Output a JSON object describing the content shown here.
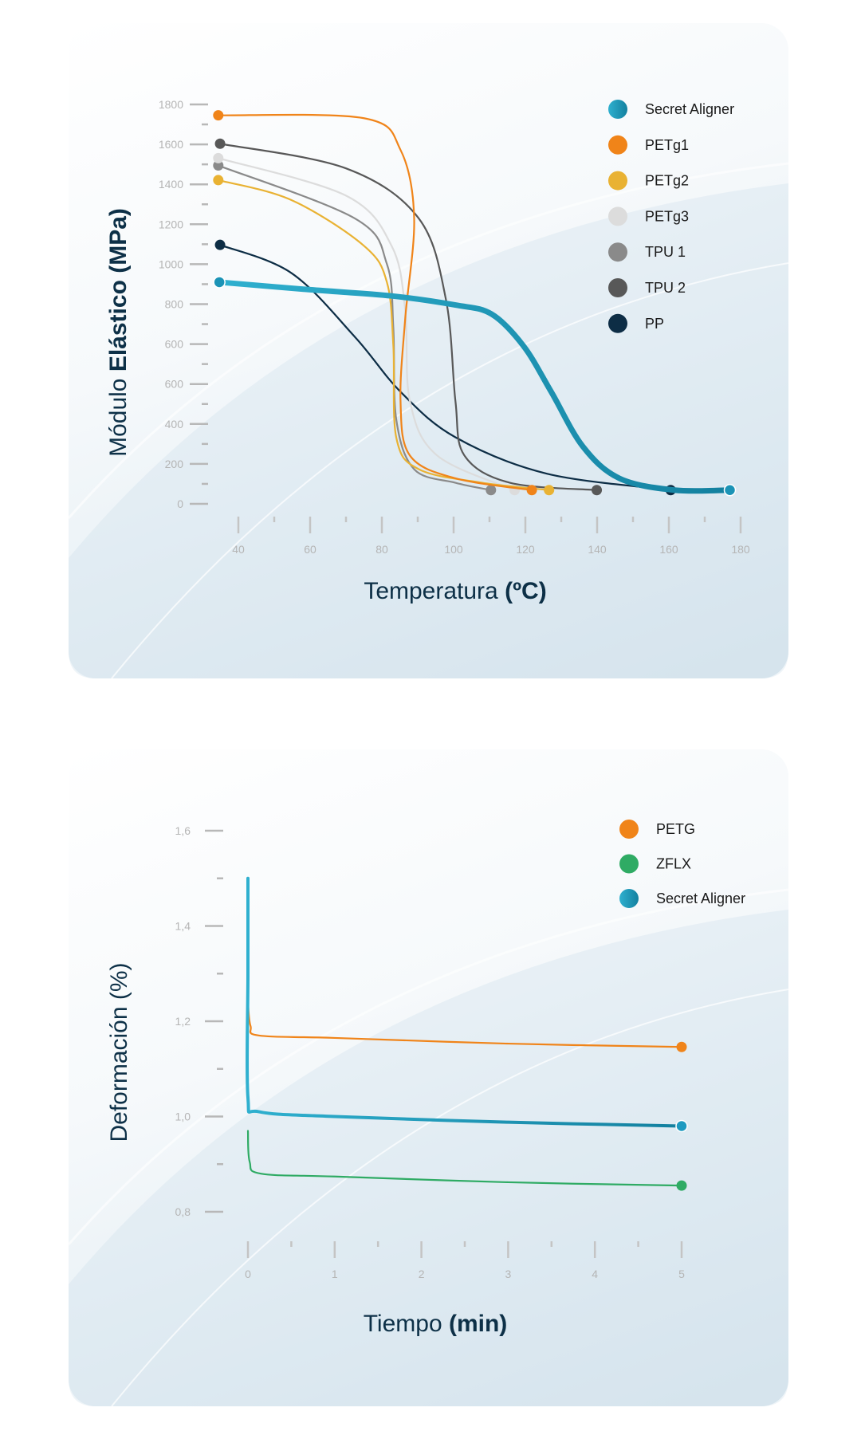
{
  "chart_data": [
    {
      "type": "line",
      "title": "",
      "xlabel": {
        "light": "Temperatura",
        "bold": "(ºC)"
      },
      "ylabel": {
        "light": "Módulo",
        "bold": "Elástico (MPa)"
      },
      "xlim": [
        40,
        180
      ],
      "ylim": [
        0,
        1800
      ],
      "x_ticks": [
        "40",
        "60",
        "80",
        "100",
        "120",
        "140",
        "160",
        "180"
      ],
      "y_ticks": [
        "1800",
        "1600",
        "1400",
        "1200",
        "1000",
        "800",
        "600",
        "600",
        "400",
        "200",
        "0"
      ],
      "legend_position": "top-right",
      "series": [
        {
          "name": "Secret Aligner",
          "color": "#1b93b6",
          "width": "thick",
          "points": [
            [
              34.7,
              999
            ],
            [
              60,
              965
            ],
            [
              82.7,
              937
            ],
            [
              100.5,
              896
            ],
            [
              110.6,
              855
            ],
            [
              119.5,
              711
            ],
            [
              127.2,
              505
            ],
            [
              136,
              259
            ],
            [
              146.2,
              115
            ],
            [
              161.5,
              62
            ],
            [
              177,
              62
            ]
          ]
        },
        {
          "name": "PETg1",
          "color": "#f08419",
          "points": [
            [
              34.4,
              1751
            ],
            [
              75,
              1738
            ],
            [
              85.2,
              1595
            ],
            [
              89,
              1286
            ],
            [
              86.5,
              834
            ],
            [
              85.2,
              464
            ],
            [
              87.8,
              218
            ],
            [
              100.5,
              115
            ],
            [
              121.8,
              62
            ]
          ]
        },
        {
          "name": "PETg2",
          "color": "#e9b233",
          "points": [
            [
              34.4,
              1459
            ],
            [
              54.8,
              1369
            ],
            [
              75,
              1163
            ],
            [
              81.4,
              999
            ],
            [
              83.2,
              711
            ],
            [
              84,
              300
            ],
            [
              90.3,
              156
            ],
            [
              108,
              95
            ],
            [
              126.6,
              62
            ]
          ]
        },
        {
          "name": "PETg3",
          "color": "#dcdcdc",
          "points": [
            [
              34.4,
              1558
            ],
            [
              70,
              1389
            ],
            [
              82.7,
              1163
            ],
            [
              86.5,
              875
            ],
            [
              87.8,
              464
            ],
            [
              95.4,
              218
            ],
            [
              117,
              62
            ]
          ]
        },
        {
          "name": "TPU 1",
          "color": "#8a8a8a",
          "points": [
            [
              34.4,
              1525
            ],
            [
              72.5,
              1286
            ],
            [
              81.4,
              1081
            ],
            [
              83.2,
              793
            ],
            [
              84,
              382
            ],
            [
              89,
              156
            ],
            [
              100.5,
              95
            ],
            [
              110.4,
              62
            ]
          ]
        },
        {
          "name": "TPU 2",
          "color": "#585858",
          "points": [
            [
              34.9,
              1623
            ],
            [
              70,
              1512
            ],
            [
              90.3,
              1286
            ],
            [
              97.9,
              917
            ],
            [
              100.5,
              464
            ],
            [
              103,
              218
            ],
            [
              115.7,
              95
            ],
            [
              139.9,
              62
            ]
          ]
        },
        {
          "name": "PP",
          "color": "#0d2d45",
          "points": [
            [
              34.9,
              1167
            ],
            [
              54.8,
              1040
            ],
            [
              72.5,
              752
            ],
            [
              85.2,
              505
            ],
            [
              100.5,
              300
            ],
            [
              126,
              136
            ],
            [
              160.5,
              62
            ]
          ]
        }
      ]
    },
    {
      "type": "line",
      "title": "",
      "xlabel": {
        "light": "Tiempo",
        "bold": "(min)"
      },
      "ylabel": {
        "light": "Deformación (%)",
        "bold": ""
      },
      "xlim": [
        0,
        5
      ],
      "ylim": [
        0.8,
        1.6
      ],
      "x_ticks": [
        "0",
        "1",
        "2",
        "3",
        "4",
        "5"
      ],
      "y_ticks": [
        "1,6",
        "1,4",
        "1,2",
        "1,0",
        "0,8"
      ],
      "legend_position": "top-right",
      "series": [
        {
          "name": "PETG",
          "color": "#f08419",
          "points": [
            [
              0,
              1.24
            ],
            [
              0.03,
              1.19
            ],
            [
              0.13,
              1.17
            ],
            [
              1,
              1.165
            ],
            [
              3,
              1.153
            ],
            [
              5,
              1.146
            ]
          ]
        },
        {
          "name": "ZFLX",
          "color": "#2fab64",
          "points": [
            [
              0,
              0.97
            ],
            [
              0.02,
              0.905
            ],
            [
              0.15,
              0.88
            ],
            [
              1,
              0.874
            ],
            [
              3,
              0.862
            ],
            [
              5,
              0.855
            ]
          ]
        },
        {
          "name": "Secret Aligner",
          "color": "#1e9ac0",
          "width": "thick",
          "points": [
            [
              0,
              1.5
            ],
            [
              0,
              1.3
            ],
            [
              0,
              1.04
            ],
            [
              0.13,
              1.01
            ],
            [
              1,
              1.0
            ],
            [
              3,
              0.988
            ],
            [
              5,
              0.98
            ]
          ]
        }
      ]
    }
  ]
}
